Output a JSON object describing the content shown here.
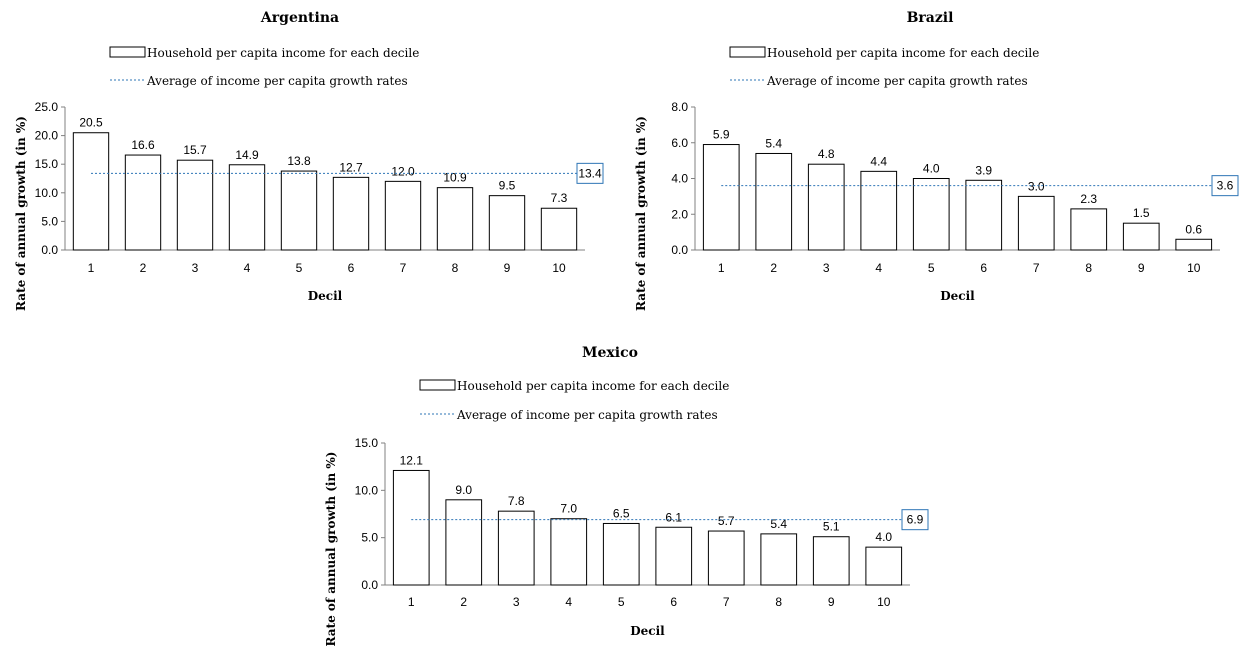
{
  "colors": {
    "bar_fill": "#ffffff",
    "bar_stroke": "#000000",
    "average_line": "#2e75b6",
    "axis": "#808080"
  },
  "chart_data": [
    {
      "type": "bar",
      "title": "Argentina",
      "xlabel": "Decil",
      "ylabel": "Rate of annual growth (in %)",
      "legend": [
        "Household per capita income for each decile",
        "Average of income per capita growth rates"
      ],
      "legend_position": "top",
      "categories": [
        "1",
        "2",
        "3",
        "4",
        "5",
        "6",
        "7",
        "8",
        "9",
        "10"
      ],
      "series": [
        {
          "name": "Household per capita income for each decile",
          "values": [
            20.5,
            16.6,
            15.7,
            14.9,
            13.8,
            12.7,
            12.0,
            10.9,
            9.5,
            7.3
          ]
        }
      ],
      "data_labels": [
        "20.5",
        "16.6",
        "15.7",
        "14.9",
        "13.8",
        "12.7",
        "12.0",
        "10.9",
        "9.5",
        "7.3"
      ],
      "average": 13.4,
      "average_label": "13.4",
      "ylim": [
        0,
        25
      ],
      "yticks": [
        "0.0",
        "5.0",
        "10.0",
        "15.0",
        "20.0",
        "25.0"
      ],
      "grid": false
    },
    {
      "type": "bar",
      "title": "Brazil",
      "xlabel": "Decil",
      "ylabel": "Rate of annual growth (in %)",
      "legend": [
        "Household per capita income for each decile",
        "Average of income per capita growth rates"
      ],
      "legend_position": "top",
      "categories": [
        "1",
        "2",
        "3",
        "4",
        "5",
        "6",
        "7",
        "8",
        "9",
        "10"
      ],
      "series": [
        {
          "name": "Household per capita income for each decile",
          "values": [
            5.9,
            5.4,
            4.8,
            4.4,
            4.0,
            3.9,
            3.0,
            2.3,
            1.5,
            0.6
          ]
        }
      ],
      "data_labels": [
        "5.9",
        "5.4",
        "4.8",
        "4.4",
        "4.0",
        "3.9",
        "3.0",
        "2.3",
        "1.5",
        "0.6"
      ],
      "average": 3.6,
      "average_label": "3.6",
      "ylim": [
        0,
        8
      ],
      "yticks": [
        "0.0",
        "2.0",
        "4.0",
        "6.0",
        "8.0"
      ],
      "grid": false
    },
    {
      "type": "bar",
      "title": "Mexico",
      "xlabel": "Decil",
      "ylabel": "Rate of annual growth (in %)",
      "legend": [
        "Household per capita income for each decile",
        "Average of income per capita growth rates"
      ],
      "legend_position": "top",
      "categories": [
        "1",
        "2",
        "3",
        "4",
        "5",
        "6",
        "7",
        "8",
        "9",
        "10"
      ],
      "series": [
        {
          "name": "Household per capita income for each decile",
          "values": [
            12.1,
            9.0,
            7.8,
            7.0,
            6.5,
            6.1,
            5.7,
            5.4,
            5.1,
            4.0
          ]
        }
      ],
      "data_labels": [
        "12.1",
        "9.0",
        "7.8",
        "7.0",
        "6.5",
        "6.1",
        "5.7",
        "5.4",
        "5.1",
        "4.0"
      ],
      "average": 6.9,
      "average_label": "6.9",
      "ylim": [
        0,
        15
      ],
      "yticks": [
        "0.0",
        "5.0",
        "10.0",
        "15.0"
      ],
      "grid": false
    }
  ]
}
